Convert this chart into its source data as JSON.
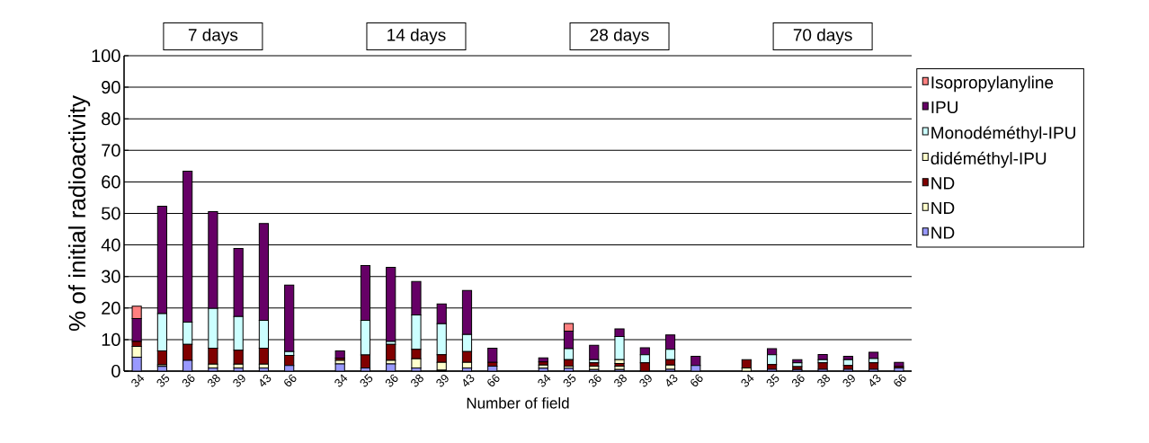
{
  "chart_data": {
    "type": "bar",
    "stacked": true,
    "ylabel": "% of initial radioactivity",
    "xlabel": "Number of field",
    "annotations": [
      "7 days",
      "14 days",
      "28 days",
      "70 days"
    ],
    "categories": [
      "34",
      "35",
      "36",
      "38",
      "39",
      "43",
      "66",
      null,
      "34",
      "35",
      "36",
      "38",
      "39",
      "43",
      "66",
      null,
      "34",
      "35",
      "36",
      "38",
      "39",
      "43",
      "66",
      null,
      "34",
      "35",
      "36",
      "38",
      "39",
      "43",
      "66"
    ],
    "series": [
      {
        "name": "ND",
        "color": "#9999ff",
        "values": [
          4.4,
          1.5,
          3.4,
          1.0,
          1.0,
          1.0,
          1.8,
          null,
          2.3,
          1.0,
          2.3,
          1.0,
          0.3,
          1.0,
          1.6,
          null,
          0.9,
          0.9,
          0.5,
          0.5,
          0,
          0.6,
          1.8,
          null,
          0,
          0.6,
          0.5,
          0.6,
          0.6,
          0.6,
          1.0
        ]
      },
      {
        "name": "ND",
        "color": "#ffffcc",
        "values": [
          3.4,
          0.5,
          0,
          1.2,
          1.2,
          1.2,
          0,
          null,
          1.1,
          0,
          1.1,
          2.9,
          2.5,
          1.8,
          0,
          null,
          1.0,
          0.7,
          1.1,
          1.1,
          0,
          1.3,
          0,
          null,
          1.0,
          0,
          0,
          0,
          0,
          0,
          0
        ]
      },
      {
        "name": "ND",
        "color": "#800000",
        "values": [
          1.6,
          4.4,
          5.1,
          5.1,
          4.4,
          5.1,
          3.2,
          null,
          0.7,
          4.1,
          5.1,
          3.0,
          2.4,
          3.4,
          1.2,
          null,
          1.0,
          2.0,
          1.0,
          0.8,
          2.6,
          1.7,
          0,
          null,
          2.6,
          1.5,
          0.9,
          2.0,
          1.2,
          2.0,
          0.5
        ]
      },
      {
        "name": "didéméthyl-IPU",
        "color": "#ffffcc",
        "values": [
          0,
          0,
          0,
          0,
          0,
          0,
          0,
          null,
          0,
          0,
          0,
          0,
          0,
          0,
          0,
          null,
          0,
          0,
          0,
          1.2,
          0,
          0,
          0,
          null,
          0,
          0,
          0,
          0,
          0,
          0,
          0
        ]
      },
      {
        "name": "Monodéméthyl-IPU",
        "color": "#ccffff",
        "values": [
          0,
          11.8,
          7.0,
          12.6,
          10.7,
          8.8,
          1.2,
          null,
          0,
          11.0,
          0.9,
          10.9,
          9.8,
          5.4,
          0,
          null,
          0,
          3.5,
          1.0,
          7.4,
          2.6,
          3.3,
          0,
          null,
          0,
          3.1,
          1.2,
          1.0,
          1.8,
          1.4,
          0
        ]
      },
      {
        "name": "IPU",
        "color": "#660066",
        "values": [
          7.3,
          34.1,
          47.9,
          30.7,
          21.6,
          30.7,
          21.1,
          null,
          2.3,
          17.4,
          23.5,
          10.6,
          6.3,
          14.0,
          4.5,
          null,
          1.3,
          5.6,
          4.6,
          2.4,
          2.2,
          4.6,
          2.9,
          null,
          0,
          1.9,
          1.0,
          1.7,
          1.1,
          2.0,
          1.3
        ]
      },
      {
        "name": "Isopropylanyline",
        "color": "#ff8080",
        "values": [
          3.9,
          0,
          0,
          0,
          0,
          0,
          0,
          null,
          0,
          0,
          0,
          0,
          0,
          0,
          0,
          null,
          0,
          2.4,
          0,
          0,
          0,
          0,
          0,
          null,
          0,
          0,
          0,
          0,
          0,
          0,
          0
        ]
      }
    ],
    "ylim": [
      0,
      100
    ],
    "yticks": [
      0,
      10,
      20,
      30,
      40,
      50,
      60,
      70,
      80,
      90,
      100
    ],
    "grid": "y",
    "legend": "right"
  }
}
